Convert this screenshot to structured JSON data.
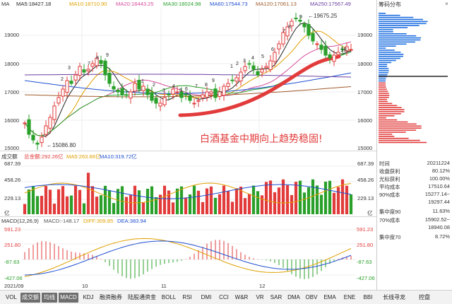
{
  "main_header": {
    "ma_label": "MA",
    "ma5": "MA5:18427.18",
    "ma10": "MA10:18710.90",
    "ma20": "MA20:18443.25",
    "ma30": "MA30:18024.98",
    "ma60": "MA60:17544.73",
    "ma120": "MA120:17061.13",
    "ma250": "MA250:17567.49"
  },
  "colors": {
    "ma5": "#222222",
    "ma10": "#e0a000",
    "ma20": "#d64d9c",
    "ma30": "#2aa02a",
    "ma60": "#1f4fd1",
    "ma120": "#a05a2c",
    "ma250": "#6b3fa0",
    "up": "#e23b3b",
    "down": "#2aa02a",
    "annotation": "#e23b3b"
  },
  "price_axis": {
    "left": [
      "19000",
      "18000",
      "17000",
      "16000",
      "15000"
    ],
    "right": [
      "19000",
      "18000",
      "17000",
      "16000",
      "15000"
    ]
  },
  "price_markers": {
    "high": "19675.25",
    "low": "15086.80",
    "last": "18..."
  },
  "annotation": "白酒基金中期向上趋势稳固!",
  "volume_header": {
    "title": "成交额",
    "total": "总金额:292.26亿",
    "ma5": "MA5:263.66亿",
    "ma10": "MA10:319.72亿"
  },
  "volume_axis": [
    "687.39",
    "458.26",
    "229.13"
  ],
  "volume_unit": "亿",
  "macd_header": {
    "title": "MACD(12,26,9)",
    "macd": "MACD:-148.17",
    "diff": "DIFF:309.85",
    "dea": "DEA:383.94"
  },
  "macd_axis": [
    "591.23",
    "251.80",
    "-87.63",
    "-427.06"
  ],
  "date_axis": [
    "2021/09",
    "10",
    "11",
    "12"
  ],
  "right_panel": {
    "title": "筹码分布",
    "close": "×",
    "stats": [
      {
        "k": "时间",
        "v": "20211224"
      },
      {
        "k": "收盘获利",
        "v": "80.12%"
      },
      {
        "k": "光标获利",
        "v": "100.00%"
      },
      {
        "k": "平均成本",
        "v": "17510.64"
      },
      {
        "k": "90%成本",
        "v": "15277.14~"
      },
      {
        "k": "",
        "v": "19297.44"
      },
      {
        "k": "集中度90",
        "v": "11.63%"
      },
      {
        "k": "70%成本",
        "v": "15902.52~"
      },
      {
        "k": "",
        "v": "18940.08"
      },
      {
        "k": "集中度70",
        "v": "8.72%"
      }
    ]
  },
  "toolbar": [
    "VOL",
    "成交额",
    "均线",
    "MACD",
    "KDJ",
    "融资融券",
    "陆股通资金",
    "BOLL",
    "RSI",
    "DMI",
    "CCI",
    "W&R",
    "VR",
    "SAR",
    "DMA",
    "OBV",
    "EMA",
    "ENE",
    "BBI",
    "长线寻龙",
    "控盘"
  ],
  "toolbar_active": [
    "成交额",
    "均线",
    "MACD"
  ],
  "bar_labels": [
    "2",
    "3",
    "7",
    "8",
    "9",
    "1",
    "2",
    "3",
    "4",
    "5",
    "6",
    "7",
    "8",
    "9",
    "1",
    "2",
    "3",
    "4",
    "5",
    "6",
    "7",
    "8",
    "9"
  ]
}
